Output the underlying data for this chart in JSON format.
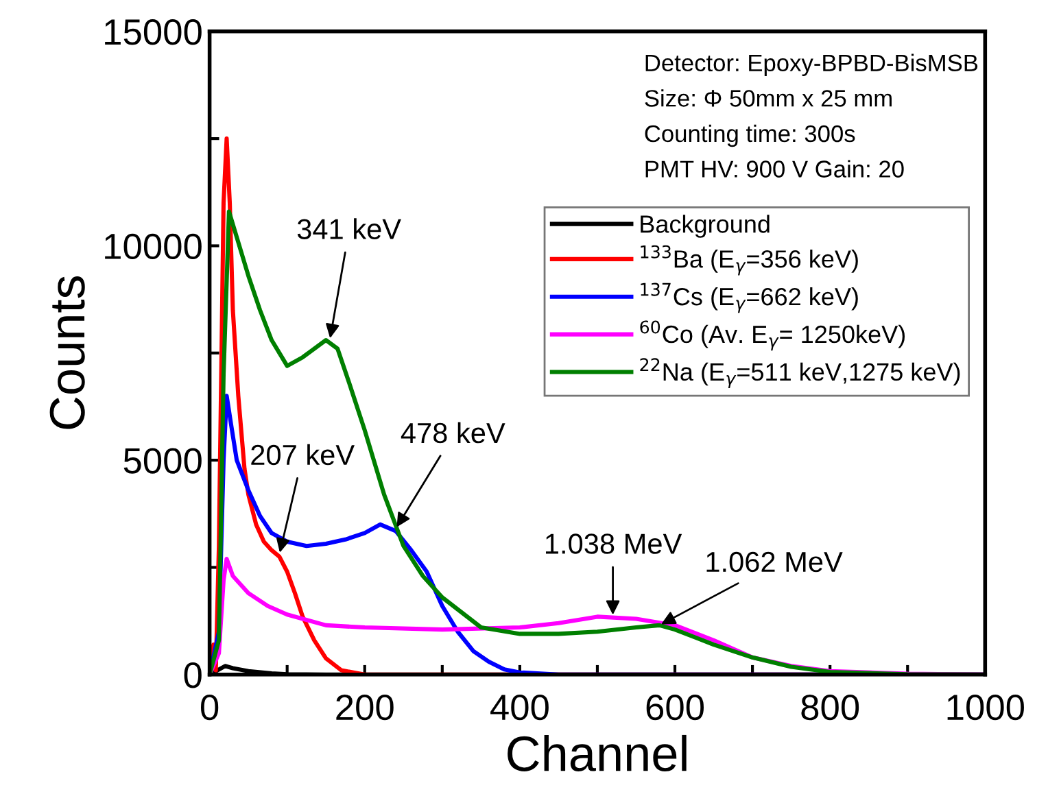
{
  "chart_data": {
    "type": "line",
    "xlabel": "Channel",
    "ylabel": "Counts",
    "xlim": [
      0,
      1000
    ],
    "xticks": [
      0,
      {
        "value": 100,
        "label": null
      },
      200,
      {
        "value": 300,
        "label": null
      },
      400,
      {
        "value": 500,
        "label": null
      },
      600,
      {
        "value": 700,
        "label": null
      },
      800,
      {
        "value": 900,
        "label": null
      },
      1000
    ],
    "ylim": [
      0,
      15000
    ],
    "yticks": [
      0,
      {
        "value": 2500,
        "label": null
      },
      5000,
      {
        "value": 7500,
        "label": null
      },
      10000,
      {
        "value": 12500,
        "label": null
      },
      15000
    ],
    "grid": false,
    "legend": "right",
    "marker": "none",
    "line_style": "solid",
    "series": [
      {
        "name": "Background",
        "color": "#000000",
        "x": [
          0,
          10,
          20,
          30,
          50,
          80,
          100,
          150,
          1000
        ],
        "values": [
          0,
          100,
          200,
          150,
          80,
          30,
          10,
          0,
          0
        ]
      },
      {
        "name": "$^{133}$Ba (E$_{γ}$=356 keV)",
        "color": "#ff0000",
        "x": [
          0,
          5,
          8,
          12,
          18,
          22,
          26,
          30,
          37,
          45,
          50,
          60,
          70,
          80,
          90,
          100,
          110,
          120,
          135,
          150,
          170,
          200,
          1000
        ],
        "values": [
          0,
          700,
          100,
          3000,
          11000,
          12500,
          11000,
          8500,
          6500,
          4800,
          4200,
          3500,
          3100,
          2900,
          2750,
          2400,
          1900,
          1350,
          800,
          380,
          100,
          0,
          0
        ]
      },
      {
        "name": "$^{137}$Cs (E$_{γ}$=662 keV)",
        "color": "#0000ff",
        "x": [
          0,
          12,
          18,
          22,
          28,
          35,
          50,
          65,
          80,
          100,
          125,
          150,
          175,
          200,
          220,
          240,
          260,
          280,
          300,
          320,
          340,
          360,
          380,
          400,
          450,
          1000
        ],
        "values": [
          0,
          1000,
          5000,
          6500,
          5800,
          5000,
          4300,
          3700,
          3300,
          3100,
          3000,
          3050,
          3150,
          3300,
          3500,
          3350,
          2900,
          2400,
          1600,
          1000,
          550,
          300,
          120,
          50,
          0,
          0
        ]
      },
      {
        "name": "$^{60}$Co (Av. E$_{γ}$= 1250keV)",
        "color": "#ff00ff",
        "x": [
          0,
          12,
          18,
          22,
          30,
          50,
          75,
          100,
          150,
          200,
          300,
          400,
          450,
          500,
          550,
          600,
          650,
          700,
          750,
          800,
          900,
          1000
        ],
        "values": [
          0,
          500,
          2200,
          2700,
          2300,
          1900,
          1600,
          1400,
          1150,
          1100,
          1050,
          1100,
          1200,
          1350,
          1300,
          1150,
          800,
          400,
          200,
          80,
          20,
          0
        ]
      },
      {
        "name": "$^{22}$Na (E$_{γ}$=511 keV,1275 keV)",
        "color": "#007f00",
        "x": [
          0,
          12,
          18,
          25,
          35,
          50,
          65,
          80,
          100,
          120,
          150,
          165,
          180,
          200,
          225,
          250,
          275,
          300,
          350,
          400,
          450,
          500,
          550,
          580,
          600,
          650,
          700,
          750,
          800,
          900,
          1000
        ],
        "values": [
          0,
          800,
          7000,
          10800,
          10200,
          9300,
          8500,
          7800,
          7200,
          7400,
          7800,
          7600,
          6800,
          5700,
          4200,
          3000,
          2300,
          1800,
          1100,
          950,
          950,
          1000,
          1100,
          1150,
          1050,
          700,
          400,
          180,
          60,
          10,
          0
        ]
      }
    ],
    "annotations": [
      {
        "text": "341 keV",
        "x": 155,
        "y": 7800
      },
      {
        "text": "207 keV",
        "x": 90,
        "y": 2800
      },
      {
        "text": "478 keV",
        "x": 240,
        "y": 3400
      },
      {
        "text": "1.038 MeV",
        "x": 520,
        "y": 1350
      },
      {
        "text": "1.062 MeV",
        "x": 580,
        "y": 1150
      },
      "Detector: Epoxy-BPBD-BisMSB",
      "Size: Φ 50mm x 25 mm",
      "Counting time: 300s",
      "PMT HV: 900 V Gain: 20"
    ]
  }
}
